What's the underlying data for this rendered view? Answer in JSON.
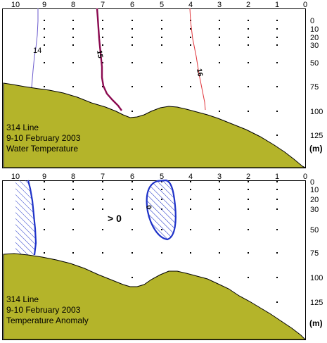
{
  "station_axis": [
    "10",
    "9",
    "8",
    "7",
    "6",
    "5",
    "4",
    "3",
    "2",
    "1",
    "0"
  ],
  "depth_axis": [
    "0",
    "10",
    "20",
    "30",
    "50",
    "75",
    "100",
    "125"
  ],
  "depth_unit": "(m)",
  "panels": [
    {
      "caption": [
        "314 Line",
        "9-10 February 2003",
        "Water Temperature"
      ],
      "contour_labels": [
        "14",
        "15",
        "16"
      ]
    },
    {
      "caption": [
        "314 Line",
        "9-10 February 2003",
        "Temperature Anomaly"
      ],
      "contour_labels": [
        "0"
      ],
      "annotation": "> 0"
    }
  ],
  "colors": {
    "seafloor": "#b4b42a",
    "contour_14": "#6a5acd",
    "contour_15": "#8b0a50",
    "contour_16": "#e0343a",
    "anomaly_zero": "#1e32c8"
  }
}
